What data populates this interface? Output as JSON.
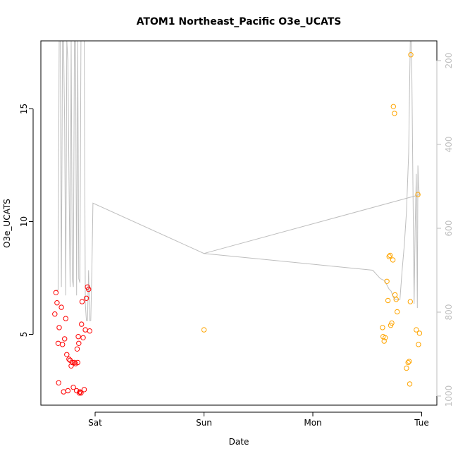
{
  "chart_data": {
    "type": "scatter",
    "title": "ATOM1 Northeast_Pacific O3e_UCATS",
    "xlabel": "Date",
    "ylabel": "O3e_UCATS",
    "x_tick_labels": [
      "Sat",
      "Sun",
      "Mon",
      "Tue"
    ],
    "y_ticks": [
      5,
      10,
      15
    ],
    "y2_ticks": [
      200,
      400,
      600,
      800,
      1000
    ],
    "xlim_days": [
      -0.42,
      3.05
    ],
    "ylim": [
      1.8,
      18.0
    ],
    "y2lim": [
      1020,
      160
    ],
    "y2_reversed": true,
    "colors": {
      "red": "#ff0000",
      "orange": "#ffa500",
      "pressure": "#bebebe",
      "axis": "#000000",
      "right_axis": "#bebebe"
    },
    "series": [
      {
        "values": [
          [
            -0.37,
            5.9
          ],
          [
            -0.36,
            6.85
          ],
          [
            -0.35,
            6.4
          ],
          [
            -0.34,
            4.6
          ],
          [
            -0.335,
            2.85
          ],
          [
            -0.33,
            5.3
          ],
          [
            -0.31,
            6.2
          ],
          [
            -0.3,
            4.55
          ],
          [
            -0.29,
            2.45
          ],
          [
            -0.28,
            4.8
          ],
          [
            -0.27,
            5.7
          ],
          [
            -0.26,
            4.1
          ],
          [
            -0.25,
            2.5
          ],
          [
            -0.24,
            3.9
          ],
          [
            -0.23,
            3.85
          ],
          [
            -0.22,
            3.6
          ],
          [
            -0.21,
            3.75
          ],
          [
            -0.2,
            2.65
          ],
          [
            -0.19,
            3.75
          ],
          [
            -0.18,
            3.7
          ],
          [
            -0.17,
            2.5
          ],
          [
            -0.165,
            4.35
          ],
          [
            -0.16,
            3.75
          ],
          [
            -0.155,
            4.9
          ],
          [
            -0.15,
            4.6
          ],
          [
            -0.145,
            2.4
          ],
          [
            -0.14,
            2.45
          ],
          [
            -0.13,
            2.4
          ],
          [
            -0.125,
            5.45
          ],
          [
            -0.12,
            6.45
          ],
          [
            -0.11,
            4.85
          ],
          [
            -0.1,
            2.55
          ],
          [
            -0.09,
            5.2
          ],
          [
            -0.08,
            6.6
          ],
          [
            -0.07,
            7.1
          ],
          [
            -0.06,
            7.0
          ],
          [
            -0.05,
            5.15
          ]
        ]
      },
      {
        "values": [
          [
            1.0,
            5.2
          ],
          [
            2.64,
            5.3
          ],
          [
            2.645,
            4.9
          ],
          [
            2.655,
            4.7
          ],
          [
            2.665,
            4.85
          ],
          [
            2.68,
            7.35
          ],
          [
            2.69,
            6.5
          ],
          [
            2.7,
            8.45
          ],
          [
            2.71,
            8.5
          ],
          [
            2.715,
            5.4
          ],
          [
            2.725,
            5.5
          ],
          [
            2.735,
            8.3
          ],
          [
            2.74,
            15.1
          ],
          [
            2.75,
            14.8
          ],
          [
            2.755,
            6.75
          ],
          [
            2.765,
            6.55
          ],
          [
            2.775,
            6.0
          ],
          [
            2.86,
            3.5
          ],
          [
            2.875,
            3.75
          ],
          [
            2.885,
            3.8
          ],
          [
            2.89,
            2.8
          ],
          [
            2.895,
            6.45
          ],
          [
            2.9,
            17.4
          ],
          [
            2.95,
            5.2
          ],
          [
            2.965,
            11.2
          ],
          [
            2.97,
            4.55
          ],
          [
            2.98,
            5.05
          ]
        ]
      }
    ],
    "pressure_track": {
      "values": [
        [
          -0.35,
          746
        ],
        [
          -0.345,
          750
        ],
        [
          -0.34,
          746
        ],
        [
          -0.33,
          100
        ],
        [
          -0.32,
          100
        ],
        [
          -0.31,
          740
        ],
        [
          -0.3,
          100
        ],
        [
          -0.29,
          130
        ],
        [
          -0.28,
          350
        ],
        [
          -0.27,
          760
        ],
        [
          -0.26,
          100
        ],
        [
          -0.25,
          200
        ],
        [
          -0.24,
          480
        ],
        [
          -0.23,
          740
        ],
        [
          -0.22,
          100
        ],
        [
          -0.21,
          720
        ],
        [
          -0.2,
          740
        ],
        [
          -0.19,
          100
        ],
        [
          -0.18,
          100
        ],
        [
          -0.17,
          760
        ],
        [
          -0.16,
          100
        ],
        [
          -0.15,
          720
        ],
        [
          -0.14,
          730
        ],
        [
          -0.13,
          100
        ],
        [
          -0.12,
          100
        ],
        [
          -0.11,
          150
        ],
        [
          -0.1,
          100
        ],
        [
          -0.09,
          780
        ],
        [
          -0.08,
          820
        ],
        [
          -0.07,
          820
        ],
        [
          -0.06,
          700
        ],
        [
          -0.05,
          820
        ],
        [
          -0.04,
          820
        ],
        [
          -0.03,
          700
        ],
        [
          -0.02,
          540
        ],
        [
          1.0,
          660
        ],
        [
          2.55,
          700
        ],
        [
          2.62,
          720
        ],
        [
          2.66,
          725
        ],
        [
          2.7,
          745
        ],
        [
          2.72,
          750
        ],
        [
          2.74,
          765
        ],
        [
          2.76,
          770
        ],
        [
          2.8,
          770
        ],
        [
          2.82,
          700
        ],
        [
          2.84,
          640
        ],
        [
          2.86,
          560
        ],
        [
          2.88,
          420
        ],
        [
          2.89,
          240
        ],
        [
          2.895,
          100
        ],
        [
          2.905,
          100
        ],
        [
          2.91,
          250
        ],
        [
          2.93,
          780
        ],
        [
          2.94,
          600
        ],
        [
          2.95,
          470
        ],
        [
          2.96,
          790
        ],
        [
          2.965,
          450
        ],
        [
          2.97,
          500
        ],
        [
          2.98,
          520
        ]
      ],
      "branch_from": [
        1.0,
        660
      ],
      "branch_to": [
        2.98,
        520
      ]
    }
  }
}
